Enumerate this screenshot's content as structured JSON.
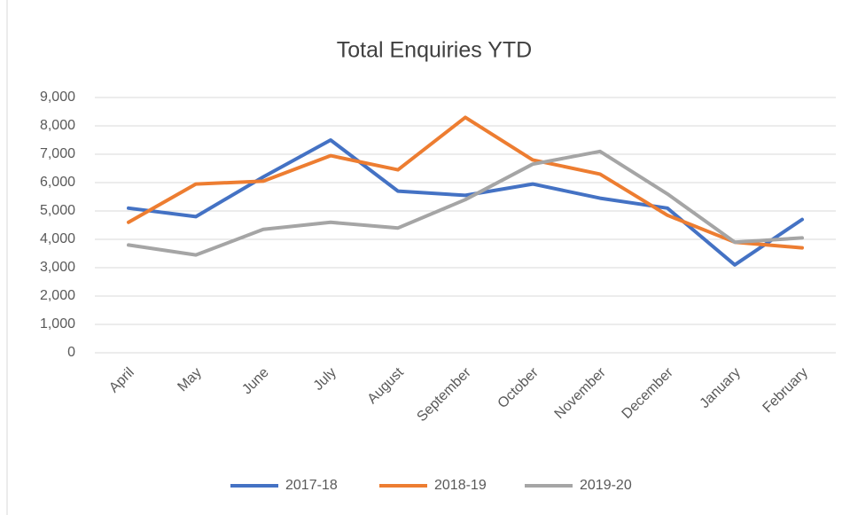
{
  "chart_data": {
    "type": "line",
    "title": "Total Enquiries YTD",
    "categories": [
      "April",
      "May",
      "June",
      "July",
      "August",
      "September",
      "October",
      "November",
      "December",
      "January",
      "February"
    ],
    "series": [
      {
        "name": "2017-18",
        "color": "#4472c4",
        "values": [
          5100,
          4800,
          6200,
          7500,
          5700,
          5550,
          5950,
          5450,
          5100,
          3100,
          4700
        ]
      },
      {
        "name": "2018-19",
        "color": "#ed7d31",
        "values": [
          4600,
          5950,
          6050,
          6950,
          6450,
          8300,
          6800,
          6300,
          4850,
          3900,
          3700
        ]
      },
      {
        "name": "2019-20",
        "color": "#a5a5a5",
        "values": [
          3800,
          3450,
          4350,
          4600,
          4400,
          5400,
          6650,
          7100,
          5600,
          3900,
          4050
        ]
      }
    ],
    "ylim": [
      0,
      9000
    ],
    "yticks": [
      0,
      {
        "value": 1000,
        "label": "1,000"
      },
      {
        "value": 2000,
        "label": "2,000"
      },
      {
        "value": 3000,
        "label": "3,000"
      },
      {
        "value": 4000,
        "label": "4,000"
      },
      {
        "value": 5000,
        "label": "5,000"
      },
      {
        "value": 6000,
        "label": "6,000"
      },
      {
        "value": 7000,
        "label": "7,000"
      },
      {
        "value": 8000,
        "label": "8,000"
      },
      {
        "value": 9000,
        "label": "9,000"
      }
    ],
    "grid": true,
    "legend": "bottom"
  }
}
